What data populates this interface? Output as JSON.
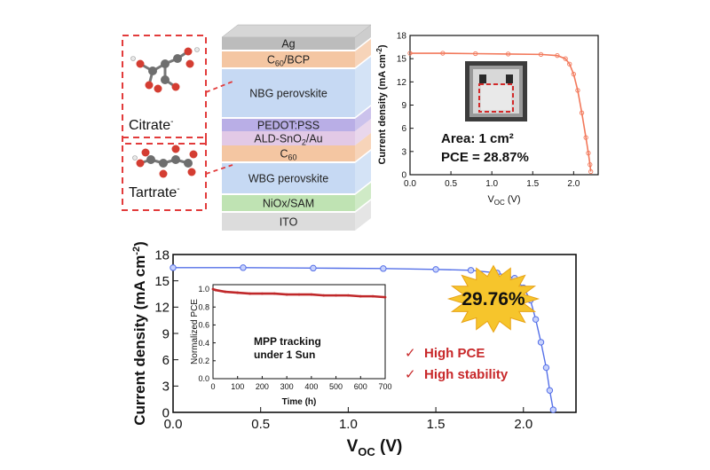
{
  "stack": {
    "layers": [
      {
        "label": "Ag",
        "color": "#bcbcbc"
      },
      {
        "label": "C60/BCP",
        "color": "#f4c6a2"
      },
      {
        "label": "NBG perovskite",
        "color": "#c6d9f3"
      },
      {
        "label": "PEDOT:PSS",
        "color": "#b9aee6"
      },
      {
        "label": "ALD-SnO2/Au",
        "color": "#e2c9e6"
      },
      {
        "label": "C60",
        "color": "#f4c6a2"
      },
      {
        "label": "WBG perovskite",
        "color": "#c6d9f3"
      },
      {
        "label": "NiOx/SAM",
        "color": "#bfe3b3"
      },
      {
        "label": "ITO",
        "color": "#dcdcdc"
      }
    ]
  },
  "molecules": {
    "citrate_label": "Citrate",
    "tartrate_label": "Tartrate",
    "charge": "-"
  },
  "colors": {
    "dashed_box": "#e23b3b",
    "orange_curve": "#f2785a",
    "blue_curve": "#5570e8",
    "mpp_curve": "#c0282a",
    "annotation_red": "#c8282a",
    "burst": "#f6c52c"
  },
  "inset_top": {
    "area_text": "Area: 1 cm²",
    "pce_text": "PCE = 28.87%"
  },
  "annotations": {
    "burst_text": "29.76%",
    "check_1": "High PCE",
    "check_2": "High stability",
    "check_mark": "✓",
    "mpp_text_1": "MPP tracking",
    "mpp_text_2": "under 1 Sun"
  },
  "chart_data": [
    {
      "id": "top_jv",
      "type": "line",
      "xlabel": "VOC (V)",
      "ylabel": "Current density (mA cm-2)",
      "xlim": [
        0.0,
        2.3
      ],
      "ylim": [
        0,
        18
      ],
      "xticks": [
        "0.0",
        "0.5",
        "1.0",
        "1.5",
        "2.0"
      ],
      "yticks": [
        "0",
        "3",
        "6",
        "9",
        "12",
        "15",
        "18"
      ],
      "series": [
        {
          "x": [
            0.0,
            0.4,
            0.8,
            1.2,
            1.6,
            1.8,
            1.9,
            1.95,
            2.0,
            2.05,
            2.1,
            2.15,
            2.18,
            2.2,
            2.21
          ],
          "y": [
            15.7,
            15.7,
            15.65,
            15.6,
            15.55,
            15.4,
            15.0,
            14.3,
            13.0,
            10.9,
            8.0,
            4.8,
            2.8,
            1.3,
            0.4
          ]
        }
      ]
    },
    {
      "id": "bottom_jv",
      "type": "scatter",
      "xlabel": "VOC (V)",
      "ylabel": "Current density (mA cm-2)",
      "xlim": [
        0.0,
        2.3
      ],
      "ylim": [
        0,
        18
      ],
      "xticks": [
        "0.0",
        "0.5",
        "1.0",
        "1.5",
        "2.0"
      ],
      "yticks": [
        "0",
        "3",
        "6",
        "9",
        "12",
        "15",
        "18"
      ],
      "series": [
        {
          "x": [
            0.0,
            0.4,
            0.8,
            1.2,
            1.5,
            1.7,
            1.85,
            1.95,
            2.0,
            2.04,
            2.07,
            2.1,
            2.13,
            2.15,
            2.17
          ],
          "y": [
            16.5,
            16.5,
            16.45,
            16.4,
            16.3,
            16.2,
            15.9,
            15.3,
            14.2,
            12.8,
            10.6,
            8.0,
            5.1,
            2.5,
            0.3
          ]
        }
      ]
    },
    {
      "id": "mpp_inset",
      "type": "line",
      "xlabel": "Time (h)",
      "ylabel": "Normalized PCE",
      "xlim": [
        0,
        700
      ],
      "ylim": [
        0.0,
        1.05
      ],
      "xticks": [
        "0",
        "100",
        "200",
        "300",
        "400",
        "500",
        "600",
        "700"
      ],
      "yticks": [
        "0.0",
        "0.2",
        "0.4",
        "0.6",
        "0.8",
        "1.0"
      ],
      "series": [
        {
          "x": [
            0,
            10,
            50,
            100,
            150,
            200,
            250,
            300,
            350,
            400,
            450,
            500,
            550,
            600,
            650,
            700
          ],
          "y": [
            1.0,
            0.99,
            0.97,
            0.96,
            0.95,
            0.95,
            0.95,
            0.94,
            0.94,
            0.94,
            0.93,
            0.93,
            0.93,
            0.92,
            0.92,
            0.91
          ]
        }
      ]
    }
  ]
}
